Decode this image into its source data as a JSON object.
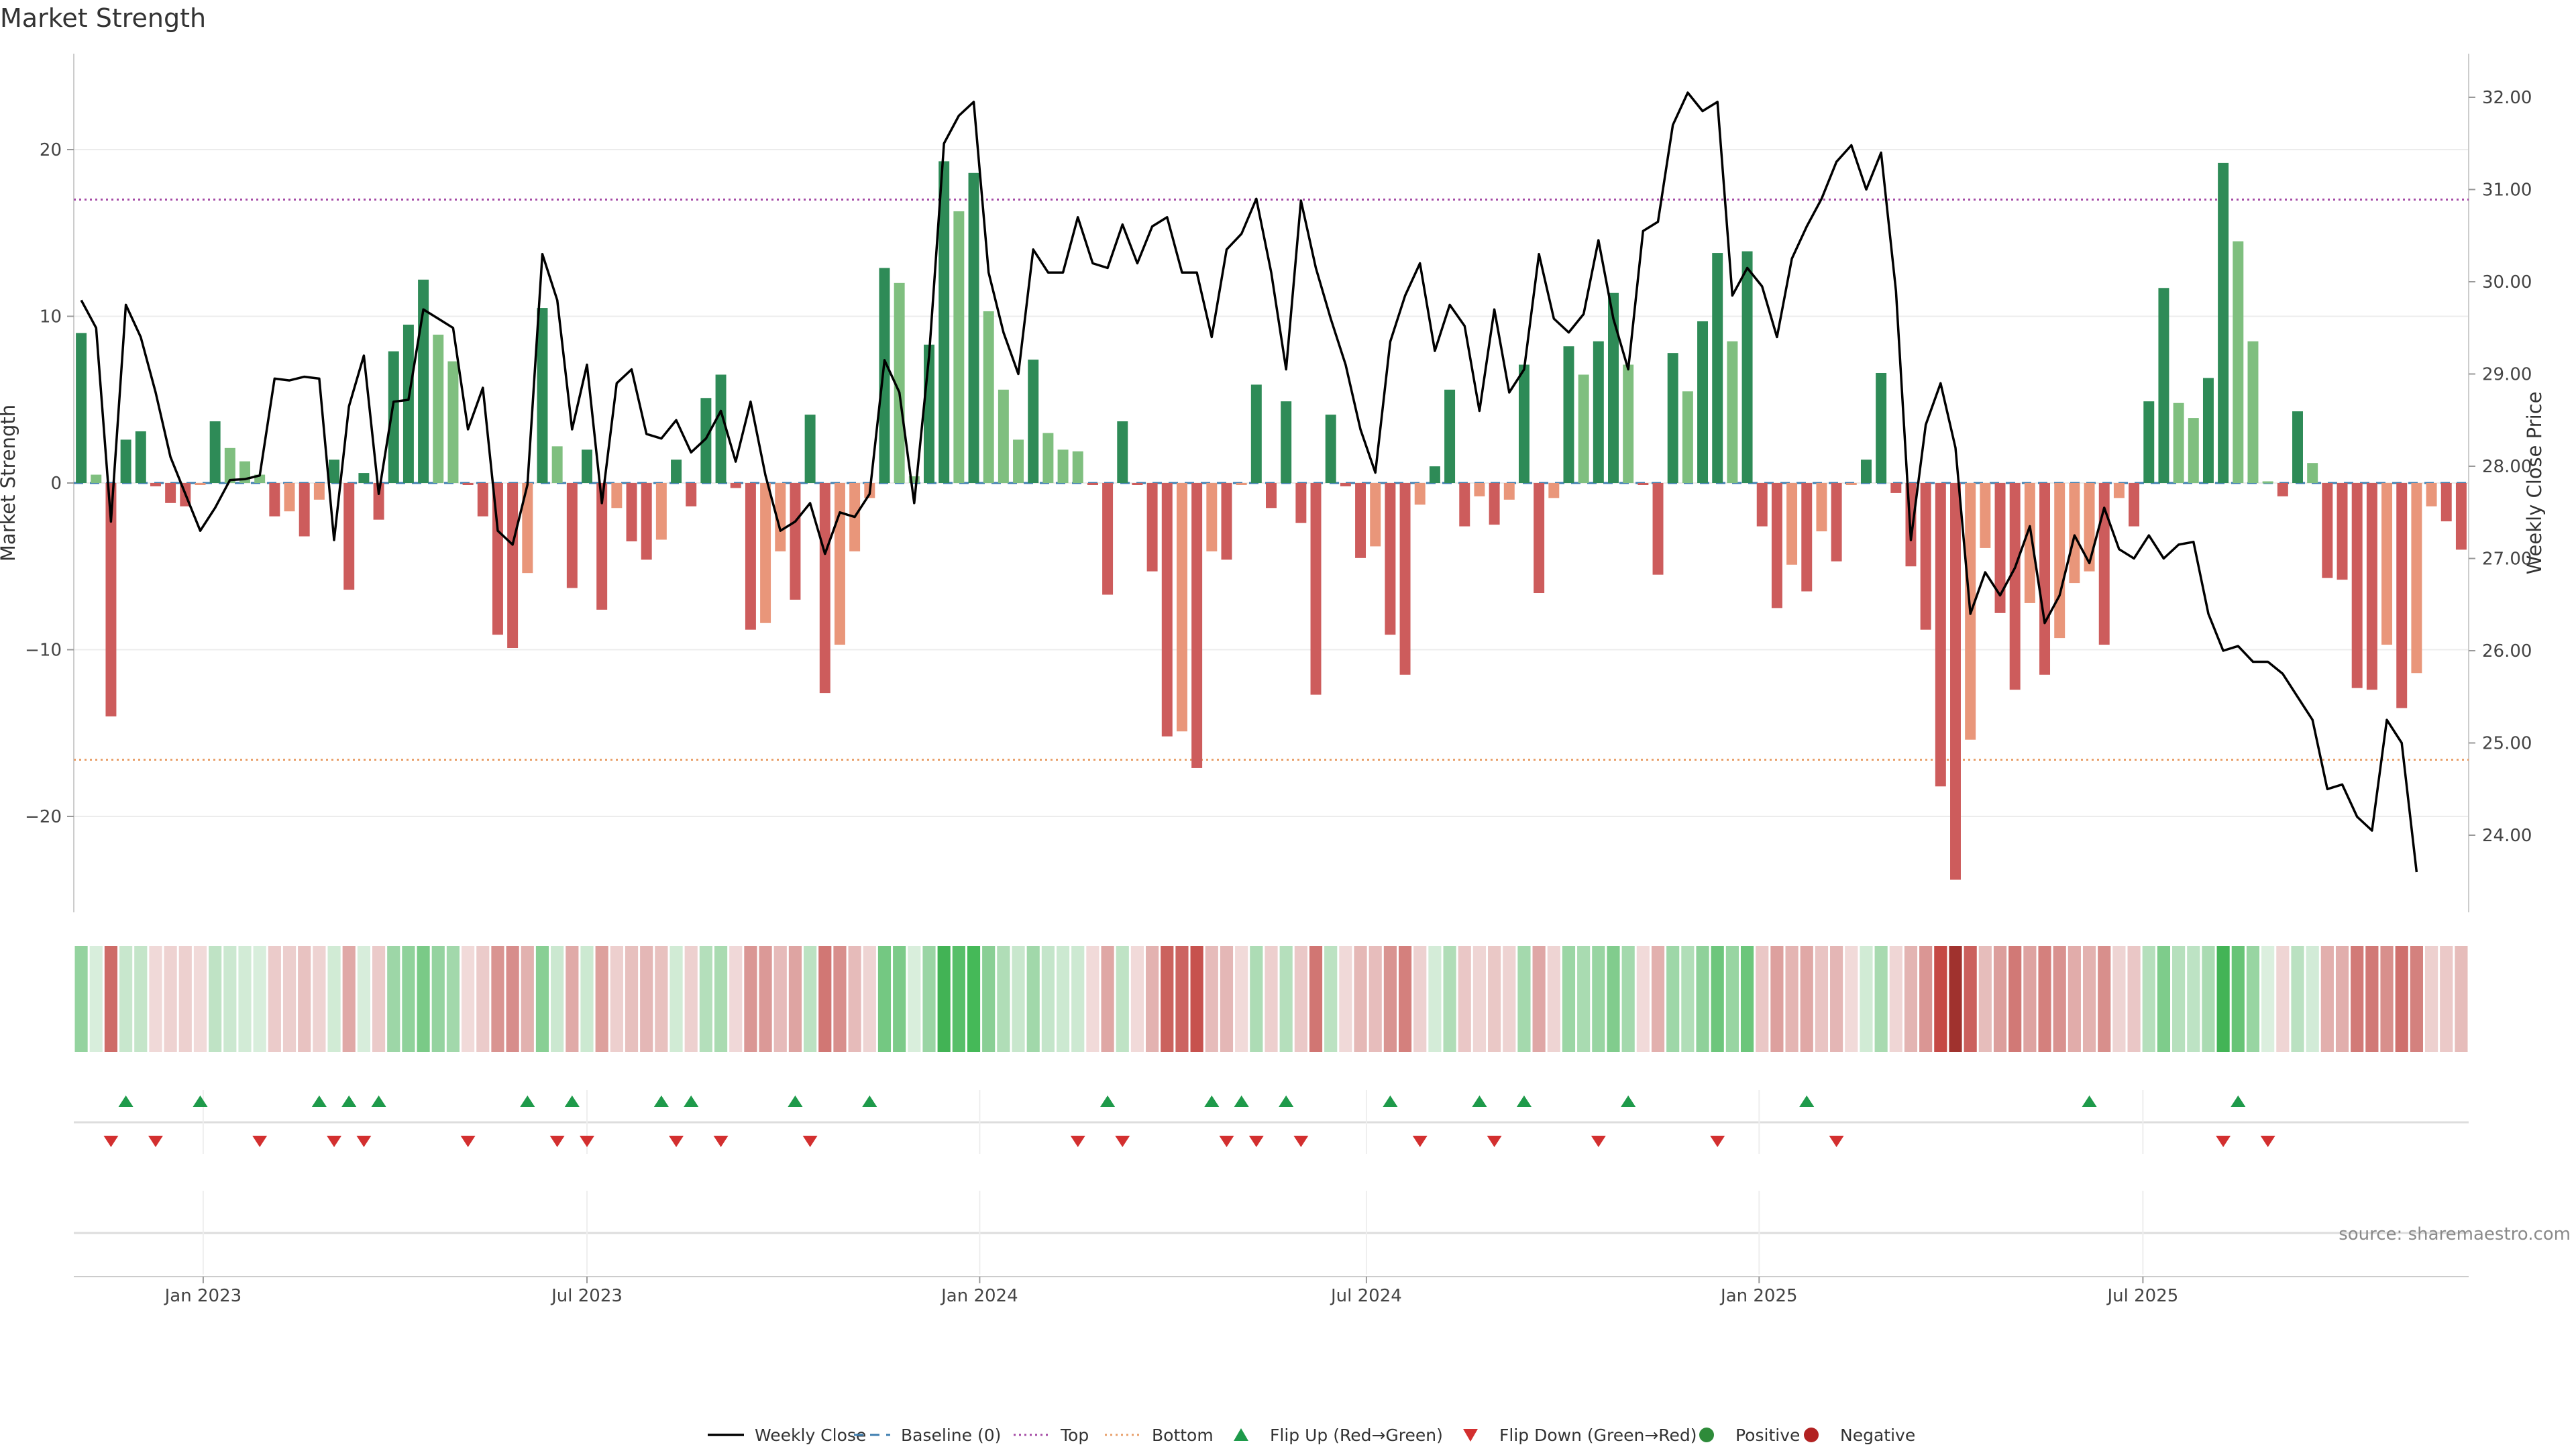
{
  "chart_data": {
    "type": "bar",
    "title": "Market Strength",
    "ylabel_left": "Market Strength",
    "ylabel_right": "Weekly Close Price",
    "ylim_left": [
      -25.6,
      25.6
    ],
    "ylim_right": [
      23.38,
      32.7
    ],
    "yticks_left": [
      "20",
      "10",
      "0",
      "−10",
      "−20"
    ],
    "yticks_left_values": [
      20,
      10,
      0,
      -10,
      -20
    ],
    "yticks_right": [
      "32.00",
      "31.00",
      "30.00",
      "29.00",
      "28.00",
      "27.00",
      "26.00",
      "25.00",
      "24.00"
    ],
    "yticks_right_values": [
      32,
      31,
      30,
      29,
      28,
      27,
      26,
      25,
      24
    ],
    "xticks": [
      "Jan 2023",
      "Jul 2023",
      "Jan 2024",
      "Jul 2024",
      "Jan 2025",
      "Jul 2025"
    ],
    "xtick_weeks": [
      8.2,
      34,
      60.4,
      86.4,
      112.8,
      138.6
    ],
    "top_level": 17,
    "bottom_level": -16.6,
    "grid": true,
    "x_unit": "weeks since 2022-11-25",
    "series": [
      {
        "name": "Market Strength",
        "values": [
          9,
          0.5,
          -14,
          2.6,
          3.1,
          -0.2,
          -1.2,
          -1.4,
          -0.1,
          3.7,
          2.1,
          1.3,
          0.5,
          -2,
          -1.7,
          -3.2,
          -1,
          1.4,
          -6.4,
          0.6,
          -2.2,
          7.9,
          9.5,
          12.2,
          8.9,
          7.3,
          -0.1,
          -2,
          -9.1,
          -9.9,
          -5.4,
          10.5,
          2.2,
          -6.3,
          2,
          -7.6,
          -1.5,
          -3.5,
          -4.6,
          -3.4,
          1.4,
          -1.4,
          5.1,
          6.5,
          -0.3,
          -8.8,
          -8.4,
          -4.1,
          -7,
          4.1,
          -12.6,
          -9.7,
          -4.1,
          -0.9,
          12.9,
          12,
          0.4,
          8.3,
          19.3,
          16.3,
          18.6,
          10.3,
          5.6,
          2.6,
          7.4,
          3,
          2,
          1.9,
          -0.1,
          -6.7,
          3.7,
          -0.1,
          -5.3,
          -15.2,
          -14.9,
          -17.1,
          -4.1,
          -4.6,
          -0.1,
          5.9,
          -1.5,
          4.9,
          -2.4,
          -12.7,
          4.1,
          -0.2,
          -4.5,
          -3.8,
          -9.1,
          -11.5,
          -1.3,
          1,
          5.6,
          -2.6,
          -0.8,
          -2.5,
          -1,
          7.1,
          -6.6,
          -0.9,
          8.2,
          6.5,
          8.5,
          11.4,
          7.1,
          -0.1,
          -5.5,
          7.8,
          5.5,
          9.7,
          13.8,
          8.5,
          13.9,
          -2.6,
          -7.5,
          -4.9,
          -6.5,
          -2.9,
          -4.7,
          -0.1,
          1.4,
          6.6,
          -0.6,
          -5,
          -8.8,
          -18.2,
          -23.8,
          -15.4,
          -3.9,
          -7.8,
          -12.4,
          -7.2,
          -11.5,
          -9.3,
          -6,
          -5.3,
          -9.7,
          -0.9,
          -2.6,
          4.9,
          11.7,
          4.8,
          3.9,
          6.3,
          19.2,
          14.5,
          8.5,
          0.1,
          -0.8,
          4.3,
          1.2,
          -5.7,
          -5.8,
          -12.3,
          -12.4,
          -9.7,
          -13.5,
          -11.4,
          -1.4,
          -2.3,
          -4
        ]
      },
      {
        "name": "Weekly Close",
        "values": [
          29.8,
          29.5,
          27.4,
          29.75,
          29.4,
          28.8,
          28.1,
          27.7,
          27.3,
          27.55,
          27.85,
          27.86,
          27.9,
          28.95,
          28.93,
          28.97,
          28.95,
          27.2,
          28.65,
          29.2,
          27.7,
          28.7,
          28.72,
          29.7,
          29.6,
          29.5,
          28.4,
          28.85,
          27.3,
          27.15,
          27.8,
          30.3,
          29.8,
          28.4,
          29.1,
          27.6,
          28.9,
          29.05,
          28.35,
          28.3,
          28.5,
          28.15,
          28.3,
          28.6,
          28.05,
          28.7,
          27.9,
          27.3,
          27.4,
          27.6,
          27.05,
          27.5,
          27.45,
          27.7,
          29.15,
          28.8,
          27.6,
          29.2,
          31.5,
          31.8,
          31.95,
          30.1,
          29.45,
          29,
          30.35,
          30.1,
          30.1,
          30.7,
          30.2,
          30.15,
          30.62,
          30.2,
          30.6,
          30.7,
          30.1,
          30.1,
          29.4,
          30.35,
          30.52,
          30.9,
          30.1,
          29.05,
          30.88,
          30.15,
          29.6,
          29.1,
          28.4,
          27.93,
          29.35,
          29.85,
          30.2,
          29.25,
          29.75,
          29.52,
          28.6,
          29.7,
          28.8,
          29.05,
          30.3,
          29.6,
          29.45,
          29.65,
          30.45,
          29.6,
          29.05,
          30.55,
          30.65,
          31.7,
          32.05,
          31.85,
          31.95,
          29.85,
          30.15,
          29.95,
          29.4,
          30.25,
          30.6,
          30.9,
          31.3,
          31.48,
          31,
          31.4,
          29.9,
          27.2,
          28.45,
          28.9,
          28.2,
          26.4,
          26.85,
          26.6,
          26.9,
          27.35,
          26.3,
          26.6,
          27.25,
          26.95,
          27.55,
          27.1,
          27,
          27.25,
          27,
          27.15,
          27.18,
          26.4,
          26,
          26.05,
          25.88,
          25.88,
          25.75,
          25.5,
          25.25,
          24.5,
          24.55,
          24.2,
          24.05,
          25.25,
          25,
          23.6
        ]
      }
    ],
    "flip_up_weeks": [
      3,
      8,
      16,
      18,
      20,
      30,
      33,
      39,
      41,
      48,
      53,
      69,
      76,
      78,
      81,
      88,
      94,
      97,
      104,
      116,
      135,
      145
    ],
    "flip_down_weeks": [
      2,
      5,
      12,
      17,
      19,
      26,
      32,
      34,
      40,
      43,
      49,
      67,
      70,
      77,
      79,
      82,
      90,
      95,
      102,
      110,
      118,
      144,
      147
    ],
    "legend": [
      {
        "label": "Weekly Close",
        "kind": "line",
        "color": "#000000"
      },
      {
        "label": "Baseline (0)",
        "kind": "dashed",
        "color": "#3f7fb0"
      },
      {
        "label": "Top",
        "kind": "dotted",
        "color": "#a64ca6"
      },
      {
        "label": "Bottom",
        "kind": "dotted",
        "color": "#e9a06b"
      },
      {
        "label": "Flip Up (Red→Green)",
        "kind": "tri-up",
        "color": "#1e9a4a"
      },
      {
        "label": "Flip Down (Green→Red)",
        "kind": "tri-down",
        "color": "#d32f2f"
      },
      {
        "label": "Positive",
        "kind": "dot",
        "color": "#2e8b3a"
      },
      {
        "label": "Negative",
        "kind": "dot",
        "color": "#b22222"
      }
    ],
    "source": "source: sharemaestro.com"
  },
  "colors": {
    "pos_strong": "#2e8b57",
    "pos_weak": "#7fbf7f",
    "neg_strong": "#cd5c5c",
    "neg_weak": "#e9967a",
    "price": "#000000",
    "grid": "#ececec",
    "axis": "#cccccc"
  }
}
